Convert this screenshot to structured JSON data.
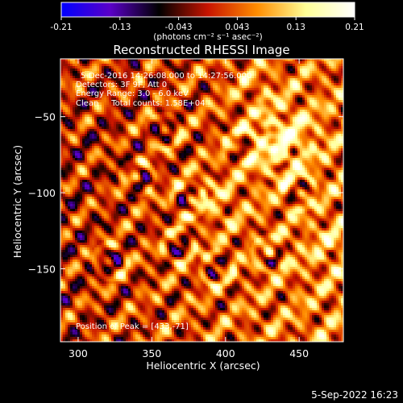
{
  "chart_data": {
    "type": "heatmap",
    "title": "Reconstructed RHESSI Image",
    "xlabel": "Heliocentric X (arcsec)",
    "ylabel": "Heliocentric Y (arcsec)",
    "xlim": [
      288,
      480
    ],
    "ylim": [
      -198,
      -12
    ],
    "x_ticks": [
      300,
      350,
      400,
      450
    ],
    "y_ticks": [
      -50,
      -100,
      -150
    ],
    "colorbar": {
      "min": -0.21,
      "max": 0.21,
      "ticks": [
        "-0.21",
        "-0.13",
        "-0.043",
        "0.043",
        "0.13",
        "0.21"
      ],
      "label": "(photons cm⁻² s⁻¹ asec⁻²)",
      "colormap": [
        "#0000ff",
        "#5a00c8",
        "#000000",
        "#c81400",
        "#ff8c00",
        "#ffff96",
        "#ffffff"
      ]
    },
    "annotations": [
      "5-Dec-2016 14:26:08.000 to 14:27:56.000",
      "Detectors: 3F 9F, Att 0",
      "Energy Range: 3.0 - 6.0 keV",
      "Clean     Total counts: 1.58E+04"
    ],
    "peak_label": "Position of Peak = [433,-71]",
    "peak": {
      "x": 433,
      "y": -71
    }
  },
  "footer": {
    "timestamp": "5-Sep-2022 16:23"
  }
}
